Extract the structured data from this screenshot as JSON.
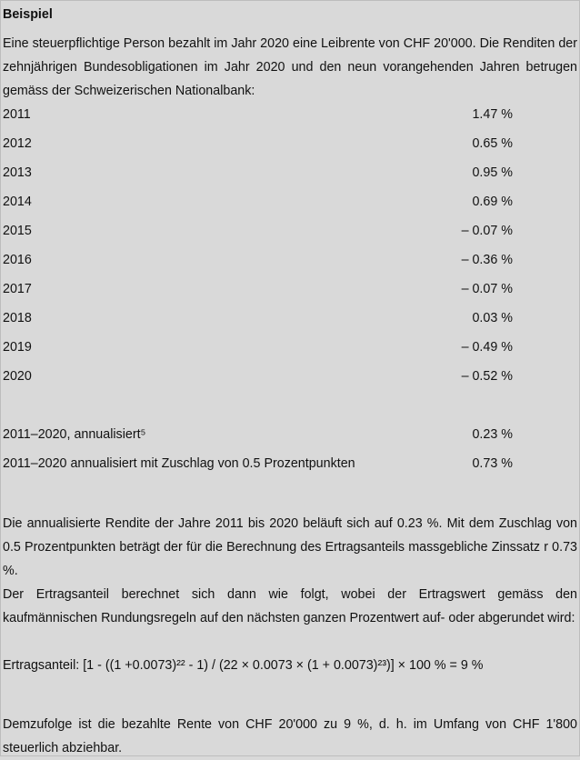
{
  "title": "Beispiel",
  "intro": "Eine steuerpflichtige Person bezahlt im Jahr 2020 eine Leibrente von CHF 20'000. Die Renditen der zehnjährigen Bundesobligationen im Jahr 2020 und den neun vorangehenden Jahren betrugen gemäss der Schweizerischen Nationalbank:",
  "rows": [
    {
      "label": "2011",
      "value": "1.47 %"
    },
    {
      "label": "2012",
      "value": "0.65 %"
    },
    {
      "label": "2013",
      "value": "0.95 %"
    },
    {
      "label": "2014",
      "value": "0.69 %"
    },
    {
      "label": "2015",
      "value": "– 0.07 %"
    },
    {
      "label": "2016",
      "value": "– 0.36 %"
    },
    {
      "label": "2017",
      "value": "– 0.07 %"
    },
    {
      "label": "2018",
      "value": "0.03 %"
    },
    {
      "label": "2019",
      "value": "– 0.49 %"
    },
    {
      "label": "2020",
      "value": "– 0.52 %"
    }
  ],
  "summary": [
    {
      "label": "2011–2020, annualisiert⁵",
      "value": "0.23 %"
    },
    {
      "label": "2011–2020 annualisiert mit Zuschlag von 0.5 Prozentpunkten",
      "value": "0.73 %"
    }
  ],
  "para1": "Die annualisierte Rendite der Jahre 2011 bis 2020 beläuft sich auf 0.23 %. Mit dem Zuschlag von 0.5 Prozentpunkten beträgt der für die Berechnung des Ertragsanteils massgebliche Zinssatz r 0.73 %.",
  "para2": "Der Ertragsanteil berechnet sich dann wie folgt, wobei der Ertragswert gemäss den kaufmännischen Rundungsregeln auf den nächsten ganzen Prozentwert auf- oder abgerundet wird:",
  "formula": "Ertragsanteil: [1 - ((1 +0.0073)²² - 1) / (22 × 0.0073 × (1 + 0.0073)²³)] × 100 % = 9 %",
  "conclusion": "Demzufolge ist die bezahlte Rente von CHF 20'000 zu 9 %, d. h. im Umfang von CHF 1'800 steuerlich abziehbar."
}
